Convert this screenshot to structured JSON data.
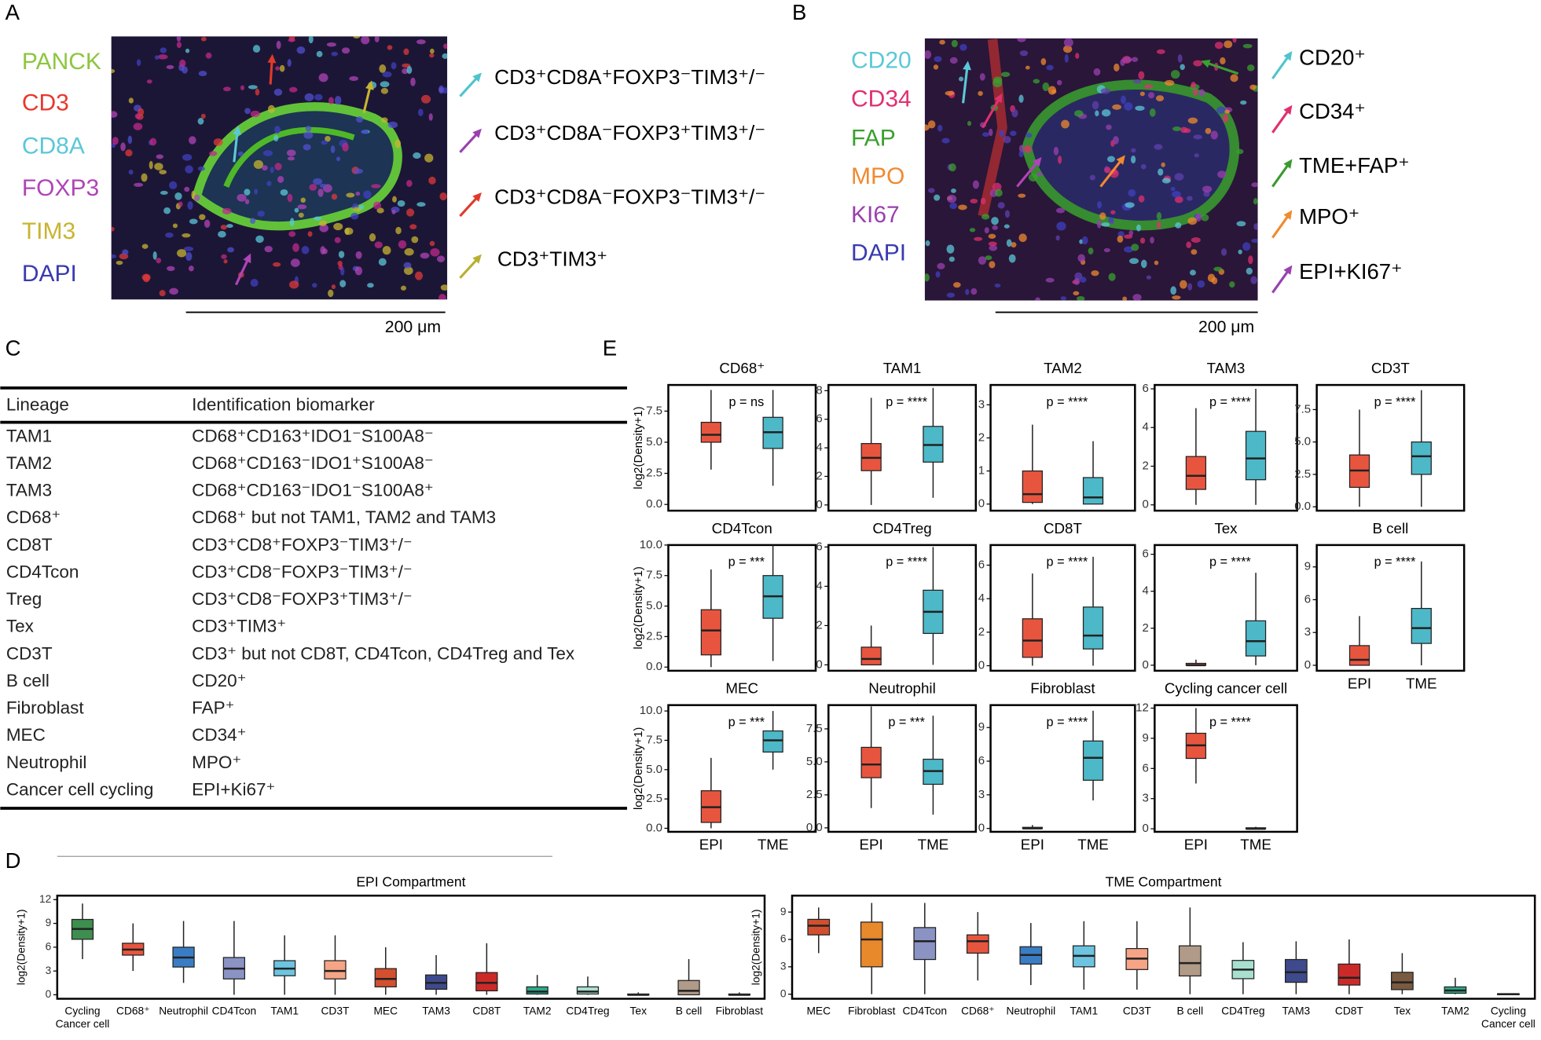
{
  "panel_labels": [
    "A",
    "B",
    "C",
    "D",
    "E"
  ],
  "panel_a": {
    "channels": [
      "PANCK",
      "CD3",
      "CD8A",
      "FOXP3",
      "TIM3",
      "DAPI"
    ],
    "legend": [
      "CD3⁺CD8A⁺FOXP3⁻TIM3⁺/⁻",
      "CD3⁺CD8A⁻FOXP3⁺TIM3⁺/⁻",
      "CD3⁺CD8A⁻FOXP3⁻TIM3⁺/⁻",
      "CD3⁺TIM3⁺"
    ],
    "scale_bar": "200 μm"
  },
  "panel_b": {
    "channels": [
      "CD20",
      "CD34",
      "FAP",
      "MPO",
      "KI67",
      "DAPI"
    ],
    "legend": [
      "CD20⁺",
      "CD34⁺",
      "TME+FAP⁺",
      "MPO⁺",
      "EPI+KI67⁺"
    ],
    "scale_bar": "200 μm"
  },
  "table": {
    "header": [
      "Lineage",
      "Identification biomarker"
    ],
    "rows": [
      [
        "TAM1",
        "CD68⁺CD163⁺IDO1⁻S100A8⁻"
      ],
      [
        "TAM2",
        "CD68⁺CD163⁻IDO1⁺S100A8⁻"
      ],
      [
        "TAM3",
        "CD68⁺CD163⁻IDO1⁻S100A8⁺"
      ],
      [
        "CD68⁺",
        "CD68⁺ but not TAM1, TAM2 and TAM3"
      ],
      [
        "CD8T",
        "CD3⁺CD8⁺FOXP3⁻TIM3⁺/⁻"
      ],
      [
        "CD4Tcon",
        "CD3⁺CD8⁻FOXP3⁻TIM3⁺/⁻"
      ],
      [
        "Treg",
        "CD3⁺CD8⁻FOXP3⁺TIM3⁺/⁻"
      ],
      [
        "Tex",
        "CD3⁺TIM3⁺"
      ],
      [
        "CD3T",
        "CD3⁺ but not CD8T, CD4Tcon, CD4Treg and Tex"
      ],
      [
        "B cell",
        "CD20⁺"
      ],
      [
        "Fibroblast",
        "FAP⁺"
      ],
      [
        "MEC",
        "CD34⁺"
      ],
      [
        "Neutrophil",
        "MPO⁺"
      ],
      [
        "Cancer cell cycling",
        "EPI+Ki67⁺"
      ]
    ]
  },
  "chart_data": [
    {
      "type": "box",
      "title": "CD68⁺",
      "ylabel": "log2(Density+1)",
      "categories": [
        null,
        null
      ],
      "colors": [
        "#e8553f",
        "#4db8c8"
      ],
      "min": [
        2.8,
        1.5
      ],
      "q1": [
        5.0,
        4.5
      ],
      "median": [
        5.6,
        5.8
      ],
      "q3": [
        6.6,
        7.0
      ],
      "max": [
        9.2,
        9.2
      ],
      "annotation": "p = ns",
      "ylim": [
        -0.5,
        9.6
      ],
      "yticks": [
        {
          "value": 0,
          "label": "0.0"
        },
        2.5,
        {
          "value": 5,
          "label": "5.0"
        },
        7.5
      ]
    },
    {
      "type": "box",
      "title": "TAM1",
      "categories": [
        null,
        null
      ],
      "colors": [
        "#e8553f",
        "#4db8c8"
      ],
      "min": [
        0,
        0.5
      ],
      "q1": [
        2.4,
        3.0
      ],
      "median": [
        3.3,
        4.2
      ],
      "q3": [
        4.3,
        5.5
      ],
      "max": [
        7.5,
        8.2
      ],
      "annotation": "p = ****",
      "ylim": [
        -0.4,
        8.4
      ],
      "yticks": [
        0,
        2,
        4,
        6,
        8
      ]
    },
    {
      "type": "box",
      "title": "TAM2",
      "categories": [
        null,
        null
      ],
      "colors": [
        "#e8553f",
        "#4db8c8"
      ],
      "min": [
        0,
        0
      ],
      "q1": [
        0.05,
        0
      ],
      "median": [
        0.3,
        0.2
      ],
      "q3": [
        1.0,
        0.8
      ],
      "max": [
        2.4,
        1.9
      ],
      "annotation": "p = ****",
      "ylim": [
        -0.2,
        3.6
      ],
      "yticks": [
        0,
        1,
        2,
        3
      ]
    },
    {
      "type": "box",
      "title": "TAM3",
      "categories": [
        null,
        null
      ],
      "colors": [
        "#e8553f",
        "#4db8c8"
      ],
      "min": [
        0,
        0
      ],
      "q1": [
        0.8,
        1.3
      ],
      "median": [
        1.5,
        2.4
      ],
      "q3": [
        2.5,
        3.8
      ],
      "max": [
        5,
        6
      ],
      "annotation": "p = ****",
      "ylim": [
        -0.3,
        6.2
      ],
      "yticks": [
        0,
        2,
        4,
        6
      ]
    },
    {
      "type": "box",
      "title": "CD3T",
      "categories": [
        null,
        null
      ],
      "colors": [
        "#e8553f",
        "#4db8c8"
      ],
      "min": [
        0,
        0
      ],
      "q1": [
        1.5,
        2.5
      ],
      "median": [
        2.8,
        3.9
      ],
      "q3": [
        4.0,
        5.0
      ],
      "max": [
        7.5,
        9
      ],
      "annotation": "p = ****",
      "ylim": [
        -0.3,
        9.4
      ],
      "yticks": [
        {
          "value": 0,
          "label": "0.0"
        },
        2.5,
        {
          "value": 5,
          "label": "5.0"
        },
        7.5
      ]
    },
    {
      "type": "box",
      "title": "CD4Tcon",
      "ylabel": "log2(Density+1)",
      "categories": [
        null,
        null
      ],
      "colors": [
        "#e8553f",
        "#4db8c8"
      ],
      "min": [
        0,
        0.5
      ],
      "q1": [
        1.0,
        4.0
      ],
      "median": [
        3.0,
        5.8
      ],
      "q3": [
        4.7,
        7.5
      ],
      "max": [
        8,
        10
      ],
      "annotation": "p = ***",
      "ylim": [
        -0.3,
        10
      ],
      "yticks": [
        {
          "value": 0,
          "label": "0.0"
        },
        2.5,
        {
          "value": 5,
          "label": "5.0"
        },
        7.5,
        {
          "value": 10,
          "label": "10.0"
        }
      ]
    },
    {
      "type": "box",
      "title": "CD4Treg",
      "categories": [
        null,
        null
      ],
      "colors": [
        "#e8553f",
        "#4db8c8"
      ],
      "min": [
        0,
        0
      ],
      "q1": [
        0,
        1.6
      ],
      "median": [
        0.3,
        2.7
      ],
      "q3": [
        0.9,
        3.8
      ],
      "max": [
        2.0,
        6
      ],
      "annotation": "p = ****",
      "ylim": [
        -0.3,
        6.1
      ],
      "yticks": [
        0,
        2,
        4,
        6
      ]
    },
    {
      "type": "box",
      "title": "CD8T",
      "categories": [
        null,
        null
      ],
      "colors": [
        "#e8553f",
        "#4db8c8"
      ],
      "min": [
        0,
        0
      ],
      "q1": [
        0.5,
        1.0
      ],
      "median": [
        1.5,
        1.8
      ],
      "q3": [
        2.8,
        3.5
      ],
      "max": [
        5.5,
        6.5
      ],
      "annotation": "p = ****",
      "ylim": [
        -0.3,
        7.2
      ],
      "yticks": [
        0,
        2,
        4,
        6
      ]
    },
    {
      "type": "box",
      "title": "Tex",
      "categories": [
        null,
        null
      ],
      "colors": [
        "#e8553f",
        "#4db8c8"
      ],
      "min": [
        0,
        0
      ],
      "q1": [
        0,
        0.5
      ],
      "median": [
        0,
        1.3
      ],
      "q3": [
        0.1,
        2.4
      ],
      "max": [
        0.3,
        5
      ],
      "annotation": "p = ****",
      "ylim": [
        -0.3,
        6.5
      ],
      "yticks": [
        0,
        2,
        4,
        6
      ]
    },
    {
      "type": "box",
      "title": "B cell",
      "categories": [
        "EPI",
        "TME"
      ],
      "colors": [
        "#e8553f",
        "#4db8c8"
      ],
      "min": [
        0,
        0
      ],
      "q1": [
        0,
        2.0
      ],
      "median": [
        0.5,
        3.4
      ],
      "q3": [
        1.8,
        5.2
      ],
      "max": [
        4.5,
        9.5
      ],
      "annotation": "p = ****",
      "ylim": [
        -0.5,
        11
      ],
      "yticks": [
        0,
        3,
        6,
        9
      ]
    },
    {
      "type": "box",
      "title": "MEC",
      "ylabel": "log2(Density+1)",
      "categories": [
        "EPI",
        "TME"
      ],
      "colors": [
        "#e8553f",
        "#4db8c8"
      ],
      "min": [
        0,
        5
      ],
      "q1": [
        0.5,
        6.5
      ],
      "median": [
        1.8,
        7.5
      ],
      "q3": [
        3.2,
        8.3
      ],
      "max": [
        6,
        10
      ],
      "annotation": "p = ***",
      "ylim": [
        -0.3,
        10.5
      ],
      "yticks": [
        {
          "value": 0,
          "label": "0.0"
        },
        2.5,
        {
          "value": 5,
          "label": "5.0"
        },
        7.5,
        {
          "value": 10,
          "label": "10.0"
        }
      ]
    },
    {
      "type": "box",
      "title": "Neutrophil",
      "categories": [
        "EPI",
        "TME"
      ],
      "colors": [
        "#e8553f",
        "#4db8c8"
      ],
      "min": [
        1.5,
        1.0
      ],
      "q1": [
        3.8,
        3.3
      ],
      "median": [
        4.8,
        4.3
      ],
      "q3": [
        6.1,
        5.2
      ],
      "max": [
        9.2,
        8.5
      ],
      "annotation": "p = ***",
      "ylim": [
        -0.3,
        9.3
      ],
      "yticks": [
        {
          "value": 0,
          "label": "0.0"
        },
        2.5,
        {
          "value": 5,
          "label": "5.0"
        },
        7.5
      ]
    },
    {
      "type": "box",
      "title": "Fibroblast",
      "categories": [
        "EPI",
        "TME"
      ],
      "colors": [
        "#e8553f",
        "#4db8c8"
      ],
      "min": [
        0,
        2.5
      ],
      "q1": [
        0,
        4.3
      ],
      "median": [
        0,
        6.3
      ],
      "q3": [
        0.1,
        7.8
      ],
      "max": [
        0.3,
        10.5
      ],
      "annotation": "p = ****",
      "ylim": [
        -0.3,
        11
      ],
      "yticks": [
        0,
        3,
        6,
        9
      ]
    },
    {
      "type": "box",
      "title": "Cycling cancer cell",
      "categories": [
        "EPI",
        "TME"
      ],
      "colors": [
        "#e8553f",
        "#4db8c8"
      ],
      "min": [
        4.5,
        0
      ],
      "q1": [
        7,
        0
      ],
      "median": [
        8.3,
        0
      ],
      "q3": [
        9.5,
        0.1
      ],
      "max": [
        12,
        0.2
      ],
      "annotation": "p = ****",
      "ylim": [
        -0.3,
        12.3
      ],
      "yticks": [
        0,
        3,
        6,
        9,
        12
      ]
    },
    {
      "type": "box",
      "title": "EPI Compartment",
      "ylabel": "log2(Density+1)",
      "categories": [
        "Cycling\nCancer cell",
        "CD68⁺",
        "Neutrophil",
        "CD4Tcon",
        "TAM1",
        "CD3T",
        "MEC",
        "TAM3",
        "CD8T",
        "TAM2",
        "CD4Treg",
        "Tex",
        "B cell",
        "Fibroblast"
      ],
      "colors": [
        "#3e8e4f",
        "#e8553f",
        "#3b7dc4",
        "#8a93c4",
        "#6cc4e0",
        "#f5a586",
        "#d2502f",
        "#3e4a8c",
        "#cc2a28",
        "#2aaa8a",
        "#a8e0d0",
        "#7a5a40",
        "#b09a88",
        "#a08060"
      ],
      "min": [
        4.5,
        3,
        1.5,
        0,
        0,
        0,
        0,
        0,
        0,
        0,
        0,
        0,
        0,
        0
      ],
      "q1": [
        7,
        5,
        3.5,
        2,
        2.4,
        2,
        1,
        0.7,
        0.5,
        0.1,
        0.1,
        0,
        0,
        0
      ],
      "median": [
        8.3,
        5.7,
        4.7,
        3.3,
        3.3,
        3,
        2,
        1.5,
        1.5,
        0.4,
        0.4,
        0,
        0.5,
        0
      ],
      "q3": [
        9.5,
        6.5,
        6,
        4.7,
        4.3,
        4.3,
        3.3,
        2.5,
        2.8,
        1,
        1,
        0.1,
        1.8,
        0.1
      ],
      "max": [
        11.5,
        9,
        9.3,
        9.3,
        7.5,
        7.5,
        6,
        5,
        6.5,
        2.5,
        2.3,
        0.3,
        4.5,
        0.3
      ],
      "ylim": [
        -0.5,
        12.5
      ],
      "yticks": [
        0,
        3,
        6,
        9,
        12
      ]
    },
    {
      "type": "box",
      "title": "TME Compartment",
      "ylabel": "log2(Density+1)",
      "categories": [
        "MEC",
        "Fibroblast",
        "CD4Tcon",
        "CD68⁺",
        "Neutrophil",
        "TAM1",
        "CD3T",
        "B cell",
        "CD4Treg",
        "TAM3",
        "CD8T",
        "Tex",
        "TAM2",
        "Cycling\nCancer cell"
      ],
      "colors": [
        "#d2502f",
        "#e8892c",
        "#8a93c4",
        "#e8553f",
        "#3b7dc4",
        "#6cc4e0",
        "#f5a586",
        "#b09a88",
        "#a8e0d0",
        "#3e4a8c",
        "#cc2a28",
        "#7a5a40",
        "#2aaa8a",
        "#999999"
      ],
      "min": [
        4.5,
        0,
        0,
        1.5,
        1,
        0.5,
        0.5,
        0,
        0,
        0,
        0,
        0,
        0,
        0
      ],
      "q1": [
        6.5,
        3,
        3.8,
        4.5,
        3.3,
        3,
        2.7,
        2,
        1.7,
        1.3,
        1,
        0.5,
        0.1,
        0
      ],
      "median": [
        7.5,
        6,
        5.8,
        5.8,
        4.3,
        4.2,
        3.9,
        3.4,
        2.7,
        2.4,
        1.8,
        1.3,
        0.4,
        0
      ],
      "q3": [
        8.2,
        7.9,
        7.3,
        6.5,
        5.2,
        5.3,
        5,
        5.3,
        3.7,
        3.8,
        3.3,
        2.4,
        0.8,
        0.05
      ],
      "max": [
        9.5,
        10,
        10,
        9,
        7.8,
        8,
        8,
        9.5,
        5.7,
        5.8,
        6,
        4.5,
        1.8,
        0.1
      ],
      "ylim": [
        -0.5,
        10.8
      ],
      "yticks": [
        0,
        3,
        6,
        9
      ]
    }
  ]
}
